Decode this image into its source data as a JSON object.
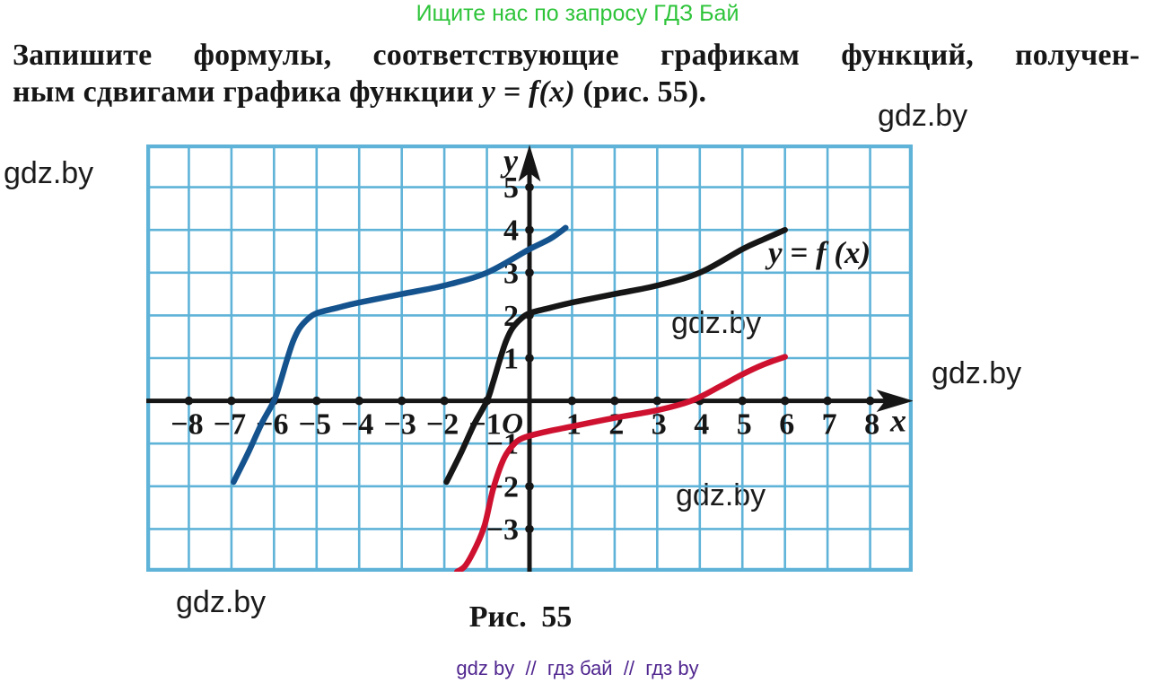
{
  "page": {
    "header_promo": "Ищите нас по запросу ГДЗ Бай",
    "problem_line1": "Запишите формулы, соответствующие графикам функций, получен-",
    "problem_line2_prefix": "ным сдвигами графика функции ",
    "problem_line2_math": "y = f(x)",
    "problem_line2_suffix": " (рис. 55).",
    "figure_caption": "Рис. 55",
    "footer_line": "gdz by  //  гдз бай  //  гдз by",
    "watermark_text": "gdz.by"
  },
  "colors": {
    "promo_green": "#2ec43a",
    "footer_purple": "#50268f",
    "grid_blue": "#5fb3d8",
    "axis_black": "#161616",
    "curve_blue": "#15538e",
    "curve_red": "#cf1130",
    "curve_black": "#161616"
  },
  "chart_data": {
    "type": "line",
    "xlabel": "x",
    "ylabel": "y",
    "origin_label": "O",
    "xlim": [
      -9,
      9
    ],
    "ylim": [
      -4,
      6
    ],
    "grid": true,
    "x_tick_values": [
      -8,
      -7,
      -6,
      -5,
      -4,
      -3,
      -2,
      -1,
      1,
      2,
      3,
      4,
      5,
      6,
      7,
      8
    ],
    "x_tick_labels": [
      "−8",
      "−7",
      "−6",
      "−5",
      "−4",
      "−3",
      "−2",
      "−1",
      "1",
      "2",
      "3",
      "4",
      "5",
      "6",
      "7",
      "8"
    ],
    "y_tick_values": [
      5,
      4,
      3,
      2,
      1,
      -1,
      -2,
      -3
    ],
    "y_tick_labels": [
      "5",
      "4",
      "3",
      "2",
      "1",
      "−1",
      "−2",
      "−3"
    ],
    "y_dot_values": [
      5,
      4,
      3,
      2,
      1,
      -2,
      -3
    ],
    "curve_label": {
      "text": "y = f (x)",
      "attached_to": "black-curve"
    },
    "series": [
      {
        "name": "blue-curve",
        "description": "graph of f shifted 5 units left",
        "color": "#15538e",
        "points": [
          [
            -6.95,
            -1.9
          ],
          [
            -6.6,
            -1.2
          ],
          [
            -6.3,
            -0.55
          ],
          [
            -6,
            0
          ],
          [
            -5.85,
            0.45
          ],
          [
            -5.7,
            0.95
          ],
          [
            -5.55,
            1.4
          ],
          [
            -5.4,
            1.7
          ],
          [
            -5.2,
            1.92
          ],
          [
            -5,
            2.05
          ],
          [
            -4.5,
            2.18
          ],
          [
            -4,
            2.3
          ],
          [
            -3,
            2.5
          ],
          [
            -2,
            2.7
          ],
          [
            -1,
            3.0
          ],
          [
            0,
            3.55
          ],
          [
            0.5,
            3.8
          ],
          [
            0.85,
            4.05
          ]
        ]
      },
      {
        "name": "red-curve",
        "description": "graph of f shifted 3 units down",
        "color": "#cf1130",
        "points": [
          [
            -1.7,
            -4
          ],
          [
            -1.5,
            -3.85
          ],
          [
            -1.25,
            -3.4
          ],
          [
            -1.05,
            -2.9
          ],
          [
            -0.85,
            -2.05
          ],
          [
            -0.6,
            -1.35
          ],
          [
            -0.35,
            -1
          ],
          [
            -0.1,
            -0.85
          ],
          [
            0.4,
            -0.72
          ],
          [
            1,
            -0.6
          ],
          [
            2,
            -0.4
          ],
          [
            3,
            -0.22
          ],
          [
            3.8,
            0
          ],
          [
            4.5,
            0.35
          ],
          [
            5,
            0.62
          ],
          [
            5.5,
            0.85
          ],
          [
            6,
            1.03
          ]
        ]
      },
      {
        "name": "black-curve",
        "label": "y = f (x)",
        "color": "#161616",
        "points": [
          [
            -1.95,
            -1.9
          ],
          [
            -1.6,
            -1.2
          ],
          [
            -1.3,
            -0.55
          ],
          [
            -1,
            0
          ],
          [
            -0.85,
            0.45
          ],
          [
            -0.7,
            0.95
          ],
          [
            -0.55,
            1.4
          ],
          [
            -0.4,
            1.7
          ],
          [
            -0.2,
            1.92
          ],
          [
            0,
            2.05
          ],
          [
            0.5,
            2.18
          ],
          [
            1,
            2.3
          ],
          [
            2,
            2.5
          ],
          [
            3,
            2.7
          ],
          [
            4,
            3.0
          ],
          [
            5,
            3.55
          ],
          [
            5.5,
            3.78
          ],
          [
            6,
            4.0
          ]
        ]
      }
    ]
  }
}
